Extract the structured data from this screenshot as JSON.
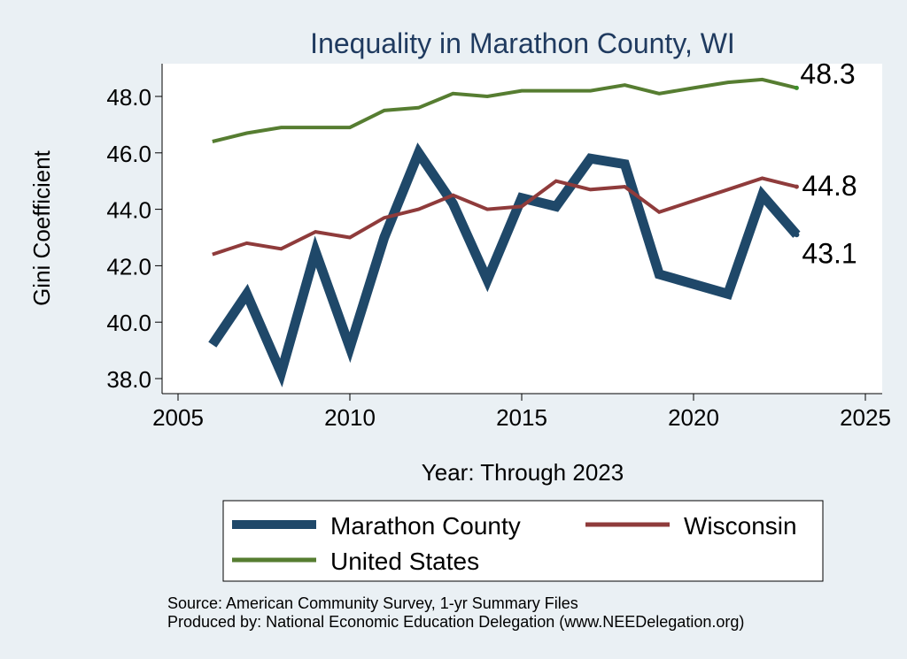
{
  "chart_data": {
    "type": "line",
    "title": "Inequality in Marathon County, WI",
    "xlabel": "Year: Through 2023",
    "ylabel": "Gini Coefficient",
    "xlim": [
      2004,
      2026
    ],
    "ylim": [
      37.6,
      49.1
    ],
    "xticks": [
      2005,
      2010,
      2015,
      2020,
      2025
    ],
    "yticks": [
      38.0,
      40.0,
      42.0,
      44.0,
      46.0,
      48.0
    ],
    "grid": false,
    "legend_position": "bottom",
    "series": [
      {
        "name": "Marathon County",
        "color": "#1f4869",
        "x": [
          2006,
          2007,
          2008,
          2009,
          2010,
          2011,
          2012,
          2013,
          2014,
          2015,
          2016,
          2017,
          2018,
          2019,
          2021,
          2022,
          2023
        ],
        "y": [
          39.2,
          41.0,
          38.2,
          42.5,
          39.1,
          43.0,
          46.0,
          44.2,
          41.5,
          44.4,
          44.1,
          45.8,
          45.6,
          41.7,
          41.0,
          44.5,
          43.1
        ],
        "end_label": "43.1"
      },
      {
        "name": "Wisconsin",
        "color": "#8f3b3b",
        "x": [
          2006,
          2007,
          2008,
          2009,
          2010,
          2011,
          2012,
          2013,
          2014,
          2015,
          2016,
          2017,
          2018,
          2019,
          2020,
          2021,
          2022,
          2023
        ],
        "y": [
          42.4,
          42.8,
          42.6,
          43.2,
          43.0,
          43.7,
          44.0,
          44.5,
          44.0,
          44.1,
          45.0,
          44.7,
          44.8,
          43.9,
          44.3,
          44.7,
          45.1,
          44.8
        ],
        "end_label": "44.8"
      },
      {
        "name": "United States",
        "color": "#567d31",
        "x": [
          2006,
          2007,
          2008,
          2009,
          2010,
          2011,
          2012,
          2013,
          2014,
          2015,
          2016,
          2017,
          2018,
          2019,
          2020,
          2021,
          2022,
          2023
        ],
        "y": [
          46.4,
          46.7,
          46.9,
          46.9,
          46.9,
          47.5,
          47.6,
          48.1,
          48.0,
          48.2,
          48.2,
          48.2,
          48.4,
          48.1,
          48.3,
          48.5,
          48.6,
          48.3
        ],
        "end_label": "48.3"
      }
    ]
  },
  "footer": {
    "source": "Source: American Community Survey, 1-yr Summary Files",
    "produced": "Produced by: National Economic Education Delegation (www.NEEDelegation.org)"
  }
}
